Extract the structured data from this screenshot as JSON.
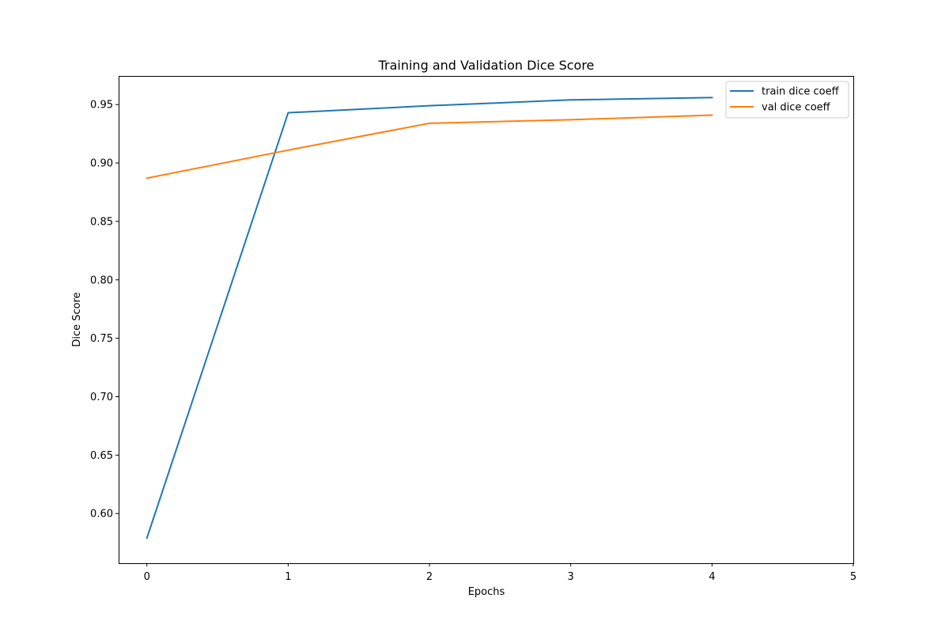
{
  "chart_data": {
    "type": "line",
    "title": "Training and Validation Dice Score",
    "xlabel": "Epochs",
    "ylabel": "Dice Score",
    "xlim": [
      -0.2,
      5
    ],
    "ylim": [
      0.5575,
      0.9745
    ],
    "x_ticks": [
      "0",
      "1",
      "2",
      "3",
      "4",
      "5"
    ],
    "y_ticks": [
      "0.60",
      "0.65",
      "0.70",
      "0.75",
      "0.80",
      "0.85",
      "0.90",
      "0.95"
    ],
    "grid": false,
    "legend_position": "top-right",
    "series": [
      {
        "name": "train dice coeff",
        "color": "#1f77b4",
        "x": [
          0,
          1,
          2,
          3,
          4
        ],
        "y": [
          0.579,
          0.943,
          0.949,
          0.954,
          0.956
        ]
      },
      {
        "name": "val dice coeff",
        "color": "#ff7f0e",
        "x": [
          0,
          1,
          2,
          3,
          4
        ],
        "y": [
          0.887,
          0.911,
          0.934,
          0.937,
          0.941
        ]
      }
    ]
  }
}
